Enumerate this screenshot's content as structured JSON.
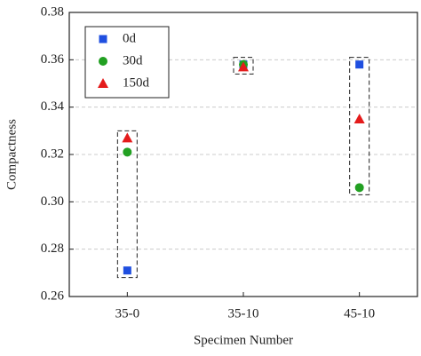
{
  "chart_data": {
    "type": "scatter",
    "x_label": "Specimen Number",
    "y_label": "Compactness",
    "categories": [
      "35-0",
      "35-10",
      "45-10"
    ],
    "series": [
      {
        "name": "0d",
        "color": "#1f4fe0",
        "marker": "square",
        "values": [
          0.271,
          0.358,
          0.358
        ]
      },
      {
        "name": "30d",
        "color": "#22a022",
        "marker": "circle",
        "values": [
          0.321,
          0.358,
          0.306
        ]
      },
      {
        "name": "150d",
        "color": "#e41b1b",
        "marker": "triangle",
        "values": [
          0.327,
          0.357,
          0.335
        ]
      }
    ],
    "ylim": [
      0.26,
      0.38
    ],
    "yticks": [
      0.26,
      0.28,
      {
        "value": 0.3,
        "label": "0.30"
      },
      0.32,
      0.34,
      0.36,
      0.38
    ],
    "grid": true,
    "legend": "upper-left"
  }
}
